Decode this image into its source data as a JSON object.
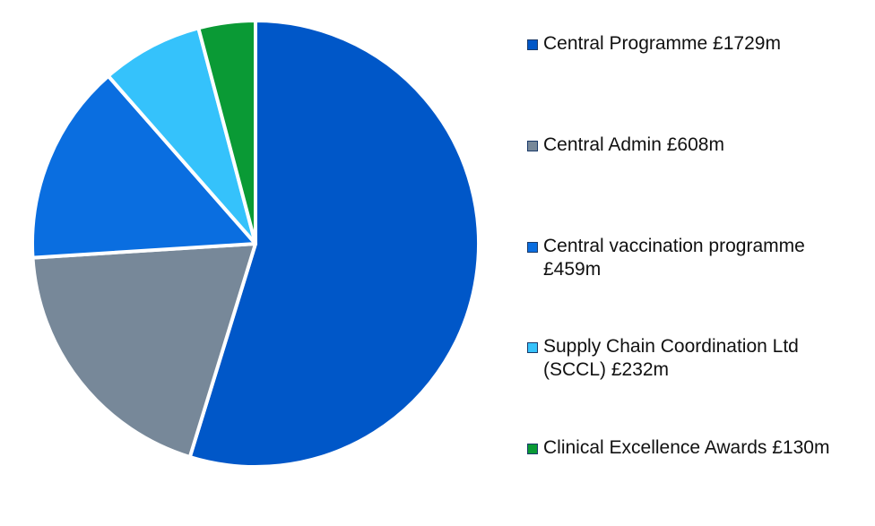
{
  "chart_data": {
    "type": "pie",
    "title": "",
    "slices": [
      {
        "label": "Central Programme £1729m",
        "value": 1729,
        "color": "#0057c8"
      },
      {
        "label": "Central Admin £608m",
        "value": 608,
        "color": "#778899"
      },
      {
        "label": "Central vaccination programme £459m",
        "value": 459,
        "color": "#0a6ee0"
      },
      {
        "label": "Supply Chain Coordination Ltd (SCCL) £232m",
        "value": 232,
        "color": "#35c2fb"
      },
      {
        "label": "Clinical Excellence Awards £130m",
        "value": 130,
        "color": "#0a9a35"
      }
    ],
    "legend_position": "right"
  }
}
